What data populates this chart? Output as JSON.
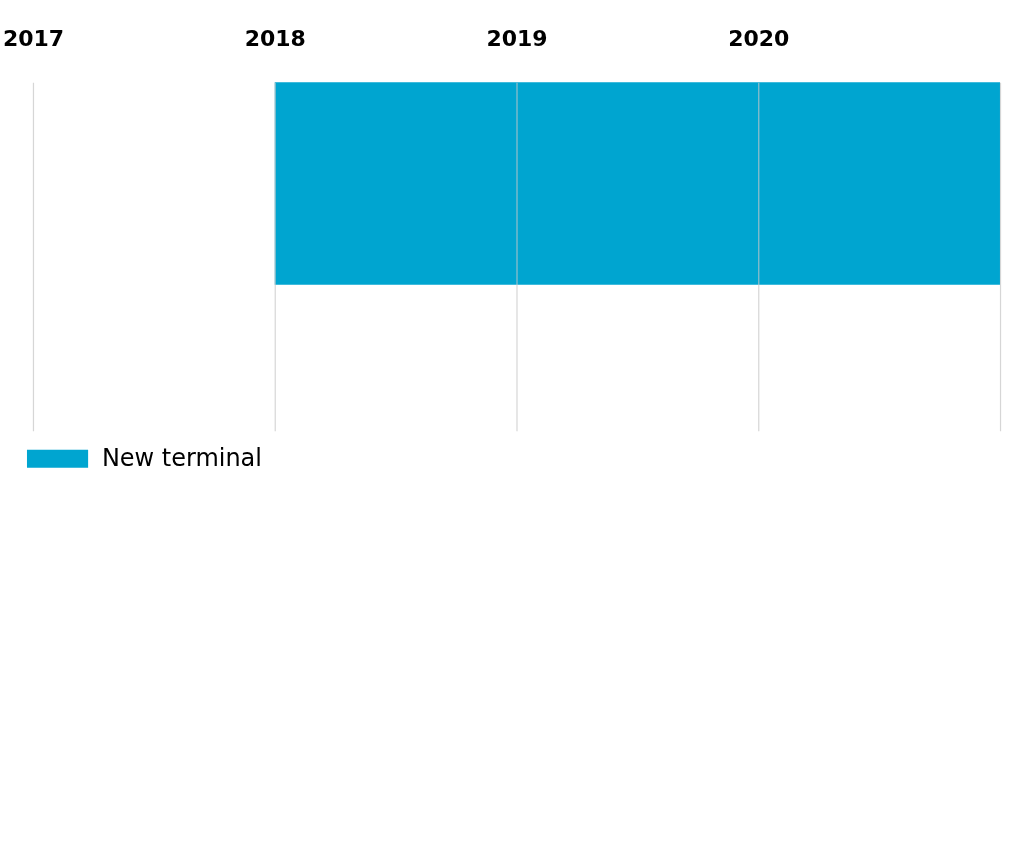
{
  "chart_data": {
    "type": "bar",
    "orientation": "horizontal",
    "categories": [
      null
    ],
    "series": [
      {
        "name": "New terminal",
        "color": "#00a5d0",
        "values": [
          3
        ],
        "base": [
          2018
        ]
      }
    ],
    "xlim": [
      2017,
      2021
    ],
    "xticks": [
      2017,
      2018,
      2019,
      2020,
      {
        "value": 2021,
        "label": null
      }
    ],
    "grid": "x",
    "legend": "bottom left",
    "tick_labels": "x"
  }
}
